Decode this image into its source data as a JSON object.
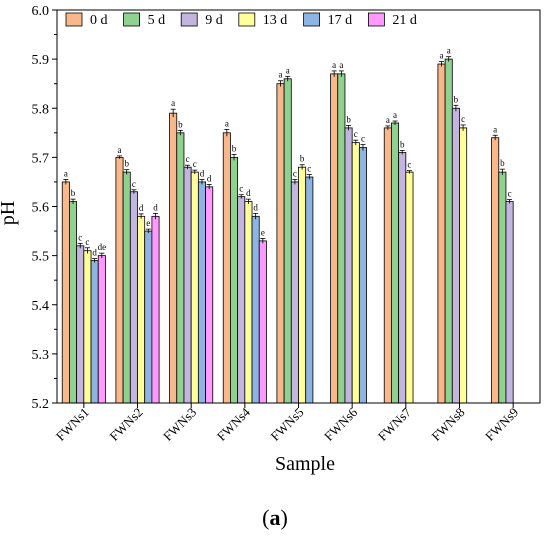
{
  "chart_data": {
    "type": "bar",
    "title": "",
    "xlabel": "Sample",
    "ylabel": "pH",
    "ylim": [
      5.2,
      6.0
    ],
    "yticks": [
      "5.2",
      "5.3",
      "5.4",
      "5.5",
      "5.6",
      "5.7",
      "5.8",
      "5.9",
      "6.0"
    ],
    "legend_placement": "top-left",
    "grid": false,
    "categories": [
      "FWNs1",
      "FWNs2",
      "FWNs3",
      "FWNs4",
      "FWNs5",
      "FWNs6",
      "FWNs7",
      "FWNs8",
      "FWNs9"
    ],
    "series": [
      {
        "name": "0 d",
        "color": "#F8B88B",
        "values": [
          5.65,
          5.7,
          5.79,
          5.75,
          5.85,
          5.87,
          5.76,
          5.89,
          5.74
        ],
        "errors": [
          0.005,
          0.003,
          0.008,
          0.007,
          0.006,
          0.006,
          0.004,
          0.005,
          0.005
        ],
        "letters": [
          "a",
          "a",
          "a",
          "a",
          "a",
          "a",
          "a",
          "a",
          "a"
        ]
      },
      {
        "name": "5 d",
        "color": "#8FD18F",
        "values": [
          5.61,
          5.67,
          5.75,
          5.7,
          5.86,
          5.87,
          5.77,
          5.9,
          5.67
        ],
        "errors": [
          0.005,
          0.005,
          0.005,
          0.006,
          0.005,
          0.006,
          0.004,
          0.005,
          0.006
        ],
        "letters": [
          "b",
          "b",
          "b",
          "b",
          "a",
          "a",
          "a",
          "a",
          "b"
        ]
      },
      {
        "name": "9 d",
        "color": "#C3B5E0",
        "values": [
          5.52,
          5.63,
          5.68,
          5.62,
          5.65,
          5.76,
          5.71,
          5.8,
          5.61
        ],
        "errors": [
          0.005,
          0.004,
          0.004,
          0.004,
          0.005,
          0.005,
          0.004,
          0.006,
          0.004
        ],
        "letters": [
          "c",
          "c",
          "c",
          "c",
          "c",
          "b",
          "b",
          "b",
          "c"
        ]
      },
      {
        "name": "13 d",
        "color": "#FFFF99",
        "values": [
          5.51,
          5.58,
          5.67,
          5.61,
          5.68,
          5.73,
          5.67,
          5.76,
          null
        ],
        "errors": [
          0.006,
          0.005,
          0.004,
          0.005,
          0.005,
          0.005,
          0.003,
          0.006,
          null
        ],
        "letters": [
          "c",
          "d",
          "c",
          "d",
          "b",
          "c",
          "c",
          "c",
          ""
        ]
      },
      {
        "name": "17 d",
        "color": "#8EB4E3",
        "values": [
          5.49,
          5.55,
          5.65,
          5.58,
          5.66,
          5.72,
          null,
          null,
          null
        ],
        "errors": [
          0.004,
          0.004,
          0.005,
          0.006,
          0.005,
          0.006,
          null,
          null,
          null
        ],
        "letters": [
          "d",
          "e",
          "d",
          "d",
          "c",
          "c",
          "",
          "",
          ""
        ]
      },
      {
        "name": "21 d",
        "color": "#FF99FF",
        "values": [
          5.5,
          5.58,
          5.64,
          5.53,
          null,
          null,
          null,
          null,
          null
        ],
        "errors": [
          0.005,
          0.006,
          0.005,
          0.005,
          null,
          null,
          null,
          null,
          null
        ],
        "letters": [
          "de",
          "d",
          "d",
          "e",
          "",
          "",
          "",
          "",
          ""
        ]
      }
    ]
  },
  "caption": {
    "open": "(",
    "letter": "a",
    "close": ")"
  }
}
